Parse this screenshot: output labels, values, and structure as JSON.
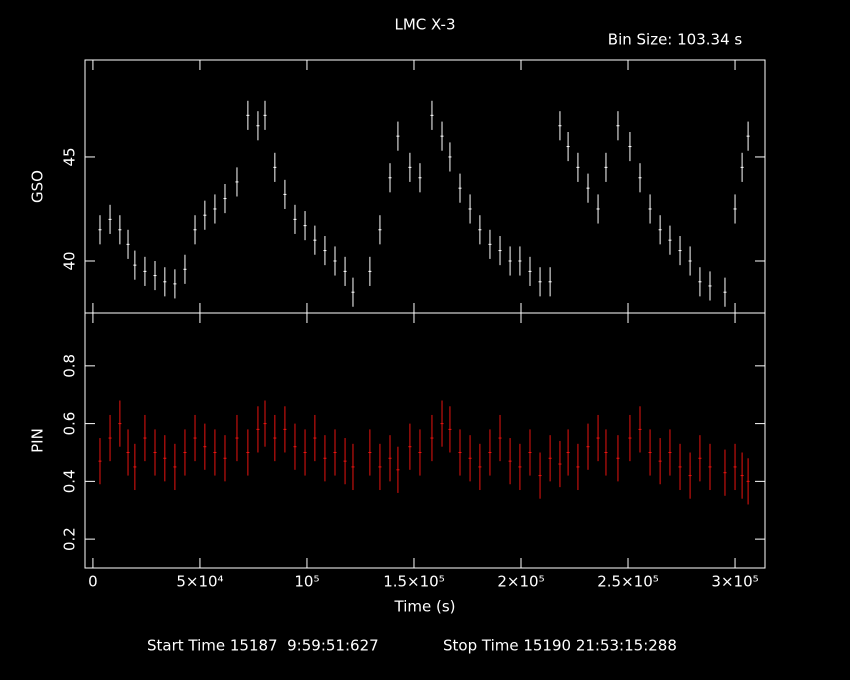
{
  "chart_data": [
    {
      "type": "errorbar",
      "title": "LMC X-3",
      "annotation": "Bin Size: 103.34 s",
      "ylabel": "GSO",
      "color": "#ffffff",
      "ylim": [
        37.5,
        49.66
      ],
      "yticks": [
        40,
        45
      ],
      "x": [
        3300,
        8000,
        12600,
        16400,
        19600,
        24300,
        29000,
        33600,
        38300,
        43000,
        47700,
        52300,
        57000,
        61700,
        67300,
        72400,
        77100,
        80400,
        85000,
        89700,
        94400,
        99100,
        103700,
        108400,
        113100,
        117800,
        121500,
        129400,
        134100,
        138800,
        142500,
        148100,
        152800,
        158400,
        163100,
        166800,
        171500,
        176200,
        180800,
        185500,
        190200,
        194900,
        199500,
        204200,
        208900,
        213600,
        218200,
        222000,
        226600,
        231300,
        236000,
        239700,
        245300,
        250900,
        255600,
        260300,
        265000,
        269600,
        274300,
        279000,
        283600,
        288300,
        295300,
        300000,
        303300,
        306100
      ],
      "values": [
        41.5,
        42,
        41.5,
        40.8,
        39.8,
        39.5,
        39.3,
        39,
        38.9,
        39.6,
        41.5,
        42.2,
        42.5,
        43,
        43.8,
        47,
        46.5,
        47,
        44.5,
        43.2,
        42,
        41.7,
        41,
        40.5,
        40,
        39.5,
        38.5,
        39.5,
        41.5,
        44,
        46,
        44.5,
        44,
        47,
        46,
        45,
        43.5,
        42.5,
        41.5,
        40.8,
        40.5,
        40,
        40,
        39.5,
        39,
        39,
        46.5,
        45.5,
        44.5,
        43.5,
        42.5,
        44.5,
        46.5,
        45.5,
        44,
        42.5,
        41.5,
        41,
        40.5,
        40,
        39,
        38.8,
        38.5,
        42.5,
        44.5,
        46
      ],
      "errors": [
        0.7,
        0.7,
        0.7,
        0.7,
        0.7,
        0.7,
        0.7,
        0.7,
        0.7,
        0.7,
        0.7,
        0.7,
        0.7,
        0.7,
        0.7,
        0.7,
        0.7,
        0.7,
        0.7,
        0.7,
        0.7,
        0.7,
        0.7,
        0.7,
        0.7,
        0.7,
        0.7,
        0.7,
        0.7,
        0.7,
        0.7,
        0.7,
        0.7,
        0.7,
        0.7,
        0.7,
        0.7,
        0.7,
        0.7,
        0.7,
        0.7,
        0.7,
        0.7,
        0.7,
        0.7,
        0.7,
        0.7,
        0.7,
        0.7,
        0.7,
        0.7,
        0.7,
        0.7,
        0.7,
        0.7,
        0.7,
        0.7,
        0.7,
        0.7,
        0.7,
        0.7,
        0.7,
        0.7,
        0.7,
        0.7,
        0.7
      ]
    },
    {
      "type": "errorbar",
      "xlabel": "Time (s)",
      "ylabel": "PIN",
      "color": "#e8130f",
      "annotations": [
        "Start Time 15187  9:59:51:627",
        "Stop Time 15190 21:53:15:288"
      ],
      "xlim": [
        -3700,
        314000
      ],
      "xticks": [
        0,
        {
          "value": 50000,
          "label": "5×10⁴"
        },
        {
          "value": 100000,
          "label": "10⁵"
        },
        {
          "value": 150000,
          "label": "1.5×10⁵"
        },
        {
          "value": 200000,
          "label": "2×10⁵"
        },
        {
          "value": 250000,
          "label": "2.5×10⁵"
        },
        {
          "value": 300000,
          "label": "3×10⁵"
        }
      ],
      "ylim": [
        0.1,
        0.983
      ],
      "yticks": [
        0.2,
        0.4,
        0.6,
        0.8
      ],
      "x": [
        3300,
        8000,
        12600,
        16400,
        19600,
        24300,
        29000,
        33600,
        38300,
        43000,
        47700,
        52300,
        57000,
        61700,
        67300,
        72400,
        77100,
        80400,
        85000,
        89700,
        94400,
        99100,
        103700,
        108400,
        113100,
        117800,
        121500,
        129400,
        134100,
        138800,
        142500,
        148100,
        152800,
        158400,
        163100,
        166800,
        171500,
        176200,
        180800,
        185500,
        190200,
        194900,
        199500,
        204200,
        208900,
        213600,
        218200,
        222000,
        226600,
        231300,
        236000,
        239700,
        245300,
        250900,
        255600,
        260300,
        265000,
        269600,
        274300,
        279000,
        283600,
        288300,
        295300,
        300000,
        303300,
        306100
      ],
      "values": [
        0.47,
        0.55,
        0.6,
        0.5,
        0.45,
        0.55,
        0.5,
        0.48,
        0.45,
        0.5,
        0.55,
        0.52,
        0.5,
        0.48,
        0.55,
        0.5,
        0.58,
        0.6,
        0.55,
        0.58,
        0.52,
        0.5,
        0.55,
        0.48,
        0.5,
        0.47,
        0.45,
        0.5,
        0.45,
        0.48,
        0.44,
        0.52,
        0.5,
        0.55,
        0.6,
        0.58,
        0.5,
        0.48,
        0.45,
        0.5,
        0.55,
        0.47,
        0.45,
        0.5,
        0.42,
        0.48,
        0.46,
        0.5,
        0.45,
        0.52,
        0.55,
        0.5,
        0.48,
        0.55,
        0.58,
        0.5,
        0.47,
        0.5,
        0.45,
        0.42,
        0.48,
        0.45,
        0.43,
        0.45,
        0.42,
        0.4
      ],
      "errors": [
        0.08,
        0.08,
        0.08,
        0.08,
        0.08,
        0.08,
        0.08,
        0.08,
        0.08,
        0.08,
        0.08,
        0.08,
        0.08,
        0.08,
        0.08,
        0.08,
        0.08,
        0.08,
        0.08,
        0.08,
        0.08,
        0.08,
        0.08,
        0.08,
        0.08,
        0.08,
        0.08,
        0.08,
        0.08,
        0.08,
        0.08,
        0.08,
        0.08,
        0.08,
        0.08,
        0.08,
        0.08,
        0.08,
        0.08,
        0.08,
        0.08,
        0.08,
        0.08,
        0.08,
        0.08,
        0.08,
        0.08,
        0.08,
        0.08,
        0.08,
        0.08,
        0.08,
        0.08,
        0.08,
        0.08,
        0.08,
        0.08,
        0.08,
        0.08,
        0.08,
        0.08,
        0.08,
        0.08,
        0.08,
        0.08,
        0.08
      ]
    }
  ]
}
